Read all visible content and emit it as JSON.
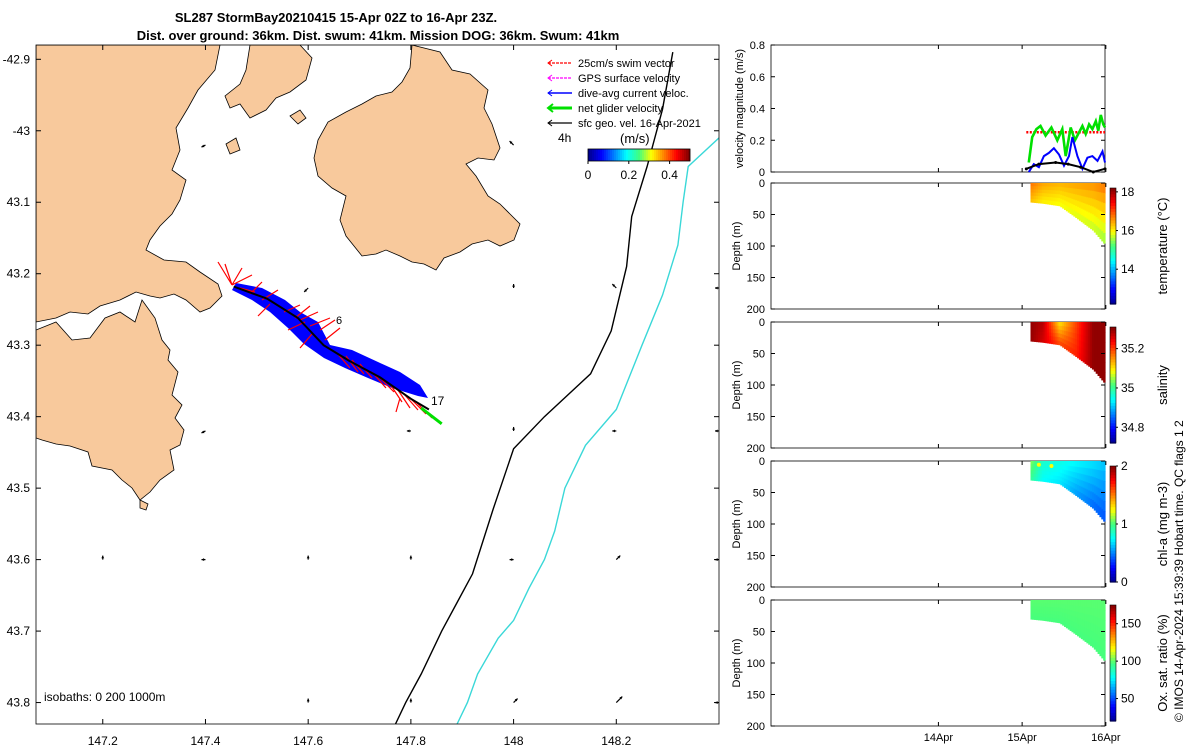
{
  "title_line1": "SL287 StormBay20210415 15-Apr 02Z to 16-Apr 23Z.",
  "title_line2": "Dist. over ground: 36km. Dist. swum: 41km. Mission DOG: 36km. Swum: 41km",
  "credit": "© IMOS 14-Apr-2024 15:39:39 Hobart time. QC flags 1  2",
  "colors": {
    "land": "#f8c99c",
    "glider_track": "#0000ff",
    "swim": "#ff0000",
    "net": "#00e000",
    "isobath_200": "#000000",
    "isobath_1000": "#3ad8d8"
  },
  "chart_data": [
    {
      "type": "map",
      "name": "track-map",
      "xlim": [
        147.07,
        148.4
      ],
      "ylim": [
        -43.83,
        -42.88
      ],
      "xticks": [
        147.2,
        147.4,
        147.6,
        147.8,
        148.0,
        148.2
      ],
      "xtick_labels": [
        "147.2",
        "147.4",
        "147.6",
        "147.8",
        "148",
        "148.2"
      ],
      "yticks": [
        -42.9,
        -43.0,
        -43.1,
        -43.2,
        -43.3,
        -43.4,
        -43.5,
        -43.6,
        -43.7,
        -43.8
      ],
      "ytick_labels": [
        "-42.9",
        "-43",
        "43.1",
        "43.2",
        "43.3",
        "43.4",
        "43.5",
        "43.6",
        "43.7",
        "43.8"
      ],
      "legend": [
        {
          "label": "25cm/s swim vector",
          "color": "#ff0000"
        },
        {
          "label": "GPS surface velocity",
          "color": "#ff00ff"
        },
        {
          "label": "dive-avg current veloc.",
          "color": "#0000ff"
        },
        {
          "label": "net glider velocity",
          "color": "#00e000"
        },
        {
          "label": "sfc geo. vel. 16-Apr-2021",
          "color": "#000000"
        }
      ],
      "colorbar": {
        "title": "(m/s)",
        "corner_label": "4h",
        "ticks": [
          "0",
          "0.2",
          "0.4"
        ],
        "range": [
          0,
          0.5
        ]
      },
      "isobaths_label": "isobaths: 0   200  1000m",
      "track_labels": [
        "6",
        "17"
      ],
      "glider_track": [
        [
          147.455,
          -43.218
        ],
        [
          147.52,
          -43.235
        ],
        [
          147.58,
          -43.262
        ],
        [
          147.63,
          -43.3
        ],
        [
          147.68,
          -43.322
        ],
        [
          147.74,
          -43.345
        ],
        [
          147.8,
          -43.375
        ],
        [
          147.835,
          -43.39
        ]
      ],
      "net_segment": [
        [
          147.82,
          -43.388
        ],
        [
          147.86,
          -43.41
        ]
      ],
      "isobath_200": [
        [
          148.31,
          -42.89
        ],
        [
          148.29,
          -42.97
        ],
        [
          148.26,
          -43.05
        ],
        [
          148.23,
          -43.12
        ],
        [
          148.22,
          -43.19
        ],
        [
          148.19,
          -43.28
        ],
        [
          148.15,
          -43.34
        ],
        [
          148.06,
          -43.4
        ],
        [
          148.0,
          -43.445
        ],
        [
          147.96,
          -43.53
        ],
        [
          147.92,
          -43.62
        ],
        [
          147.89,
          -43.66
        ],
        [
          147.86,
          -43.7
        ],
        [
          147.82,
          -43.76
        ],
        [
          147.79,
          -43.8
        ],
        [
          147.77,
          -43.83
        ]
      ],
      "isobath_1000": [
        [
          148.4,
          -43.01
        ],
        [
          148.34,
          -43.05
        ],
        [
          148.33,
          -43.1
        ],
        [
          148.32,
          -43.16
        ],
        [
          148.29,
          -43.23
        ],
        [
          148.25,
          -43.3
        ],
        [
          148.2,
          -43.39
        ],
        [
          148.14,
          -43.44
        ],
        [
          148.1,
          -43.5
        ],
        [
          148.08,
          -43.56
        ],
        [
          148.06,
          -43.6
        ],
        [
          148.03,
          -43.64
        ],
        [
          148.0,
          -43.685
        ],
        [
          147.97,
          -43.71
        ],
        [
          147.93,
          -43.76
        ],
        [
          147.91,
          -43.8
        ],
        [
          147.89,
          -43.83
        ]
      ],
      "sfc_vectors": [
        {
          "lon": 147.4,
          "lat": -43.02,
          "u": -0.1,
          "v": -0.05
        },
        {
          "lon": 148.0,
          "lat": -43.02,
          "u": -0.1,
          "v": 0.1
        },
        {
          "lon": 147.6,
          "lat": -43.22,
          "u": -0.1,
          "v": -0.1
        },
        {
          "lon": 148.0,
          "lat": -43.22,
          "u": 0.0,
          "v": 0.1
        },
        {
          "lon": 148.2,
          "lat": -43.22,
          "u": -0.1,
          "v": 0.1
        },
        {
          "lon": 148.4,
          "lat": -43.22,
          "u": -0.1,
          "v": 0.0
        },
        {
          "lon": 147.4,
          "lat": -43.42,
          "u": -0.1,
          "v": -0.05
        },
        {
          "lon": 147.8,
          "lat": -43.42,
          "u": -0.1,
          "v": 0.0
        },
        {
          "lon": 148.0,
          "lat": -43.42,
          "u": 0.0,
          "v": 0.1
        },
        {
          "lon": 148.2,
          "lat": -43.42,
          "u": -0.1,
          "v": 0.0
        },
        {
          "lon": 148.4,
          "lat": -43.42,
          "u": -0.1,
          "v": 0.0
        },
        {
          "lon": 147.2,
          "lat": -43.6,
          "u": 0.0,
          "v": 0.1
        },
        {
          "lon": 147.4,
          "lat": -43.6,
          "u": -0.1,
          "v": 0.0
        },
        {
          "lon": 147.6,
          "lat": -43.6,
          "u": 0.0,
          "v": 0.1
        },
        {
          "lon": 147.8,
          "lat": -43.6,
          "u": 0.0,
          "v": 0.1
        },
        {
          "lon": 148.0,
          "lat": -43.6,
          "u": -0.1,
          "v": 0.0
        },
        {
          "lon": 148.2,
          "lat": -43.6,
          "u": 0.1,
          "v": 0.1
        },
        {
          "lon": 148.4,
          "lat": -43.6,
          "u": -0.1,
          "v": 0.0
        },
        {
          "lon": 147.6,
          "lat": -43.8,
          "u": 0.0,
          "v": 0.1
        },
        {
          "lon": 147.8,
          "lat": -43.8,
          "u": 0.0,
          "v": 0.1
        },
        {
          "lon": 148.0,
          "lat": -43.8,
          "u": 0.1,
          "v": 0.1
        },
        {
          "lon": 148.2,
          "lat": -43.8,
          "u": 0.15,
          "v": 0.15
        },
        {
          "lon": 148.4,
          "lat": -43.8,
          "u": -0.1,
          "v": 0.0
        }
      ]
    },
    {
      "type": "line",
      "name": "velocity-magnitude",
      "ylabel": "velocity magnitude (m/s)",
      "ylim": [
        0,
        0.8
      ],
      "yticks": [
        0,
        0.2,
        0.4,
        0.6,
        0.8
      ],
      "ytick_labels": [
        "0",
        "0.2",
        "0.4",
        "0.6",
        "0.8"
      ],
      "xlim_days": [
        -2.0,
        1.99
      ],
      "x_day_origin": "14-Apr-2021",
      "series": [
        {
          "name": "swim (25cm/s)",
          "color": "#ff0000",
          "style": "dotted",
          "x": [
            1.05,
            1.99
          ],
          "values": [
            0.25,
            0.25
          ]
        },
        {
          "name": "net glider velocity",
          "color": "#00e000",
          "x": [
            1.08,
            1.12,
            1.17,
            1.22,
            1.28,
            1.35,
            1.42,
            1.48,
            1.52,
            1.58,
            1.63,
            1.68,
            1.72,
            1.76,
            1.8,
            1.84,
            1.88,
            1.91,
            1.94,
            1.97,
            1.99
          ],
          "values": [
            0.06,
            0.22,
            0.27,
            0.29,
            0.23,
            0.28,
            0.2,
            0.27,
            0.1,
            0.28,
            0.2,
            0.25,
            0.29,
            0.24,
            0.3,
            0.27,
            0.32,
            0.26,
            0.36,
            0.3,
            0.28
          ]
        },
        {
          "name": "dive-avg current",
          "color": "#0000ff",
          "x": [
            1.08,
            1.14,
            1.2,
            1.26,
            1.32,
            1.38,
            1.44,
            1.5,
            1.56,
            1.6,
            1.66,
            1.72,
            1.78,
            1.84,
            1.9,
            1.96,
            1.99
          ],
          "values": [
            0.0,
            0.05,
            0.03,
            0.1,
            0.12,
            0.15,
            0.11,
            0.04,
            0.1,
            0.22,
            0.1,
            0.02,
            0.09,
            0.1,
            0.07,
            0.13,
            0.06
          ]
        },
        {
          "name": "sfc geo. vel.",
          "color": "#000000",
          "x": [
            1.05,
            1.2,
            1.4,
            1.55,
            1.7,
            1.85,
            1.99
          ],
          "values": [
            0.02,
            0.05,
            0.06,
            0.05,
            0.03,
            0.0,
            0.02
          ]
        }
      ]
    },
    {
      "type": "heatmap",
      "name": "temperature-section",
      "ylabel": "Depth (m)",
      "ylim": [
        200,
        0
      ],
      "yticks": [
        0,
        50,
        100,
        150,
        200
      ],
      "ytick_labels": [
        "0",
        "50",
        "100",
        "150",
        "200"
      ],
      "colorbar": {
        "label": "temperature (°C)",
        "range": [
          12.2,
          18.2
        ],
        "ticks": [
          14,
          16,
          18
        ],
        "tick_labels": [
          "14",
          "16",
          "18"
        ]
      },
      "x_days": [
        1.1,
        1.25,
        1.45,
        1.65,
        1.85,
        1.99
      ],
      "bottom_depth": [
        30,
        32,
        36,
        55,
        75,
        97
      ],
      "surface_value": [
        16.8,
        16.5,
        16.4,
        16.5,
        16.6,
        16.8
      ],
      "deep_value": [
        16.3,
        16.0,
        15.9,
        15.8,
        15.7,
        15.5
      ]
    },
    {
      "type": "heatmap",
      "name": "salinity-section",
      "ylabel": "Depth (m)",
      "ylim": [
        200,
        0
      ],
      "yticks": [
        0,
        50,
        100,
        150,
        200
      ],
      "ytick_labels": [
        "0",
        "50",
        "100",
        "150",
        "200"
      ],
      "colorbar": {
        "label": "salinity",
        "range": [
          34.72,
          35.31
        ],
        "ticks": [
          34.8,
          35.0,
          35.2
        ],
        "tick_labels": [
          "34.8",
          "35",
          "35.2"
        ]
      },
      "x_days": [
        1.1,
        1.25,
        1.45,
        1.65,
        1.85,
        1.99
      ],
      "bottom_depth": [
        30,
        32,
        36,
        55,
        75,
        97
      ],
      "surface_value": [
        35.3,
        35.28,
        35.1,
        35.2,
        35.3,
        35.3
      ],
      "deep_value": [
        35.3,
        35.26,
        35.2,
        35.22,
        35.3,
        35.3
      ]
    },
    {
      "type": "heatmap",
      "name": "chla-section",
      "ylabel": "Depth (m)",
      "ylim": [
        200,
        0
      ],
      "yticks": [
        0,
        50,
        100,
        150,
        200
      ],
      "ytick_labels": [
        "0",
        "50",
        "100",
        "150",
        "200"
      ],
      "colorbar": {
        "label": "chl-a (mg m-3)",
        "range": [
          0,
          2
        ],
        "ticks": [
          0,
          1,
          2
        ],
        "tick_labels": [
          "0",
          "1",
          "2"
        ]
      },
      "x_days": [
        1.1,
        1.25,
        1.45,
        1.65,
        1.85,
        1.99
      ],
      "bottom_depth": [
        30,
        32,
        36,
        55,
        75,
        97
      ],
      "surface_value": [
        1.1,
        0.85,
        0.8,
        0.75,
        0.7,
        0.65
      ],
      "deep_value": [
        0.95,
        0.75,
        0.7,
        0.55,
        0.45,
        0.4
      ]
    },
    {
      "type": "heatmap",
      "name": "oxygen-section",
      "ylabel": "Depth (m)",
      "ylim": [
        200,
        0
      ],
      "yticks": [
        0,
        50,
        100,
        150,
        200
      ],
      "ytick_labels": [
        "0",
        "50",
        "100",
        "150",
        "200"
      ],
      "colorbar": {
        "label": "Ox. sat. ratio (%)",
        "range": [
          20,
          175
        ],
        "ticks": [
          50,
          100,
          150
        ],
        "tick_labels": [
          "50",
          "100",
          "150"
        ]
      },
      "x_days": [
        1.1,
        1.25,
        1.45,
        1.65,
        1.85,
        1.99
      ],
      "bottom_depth": [
        30,
        32,
        36,
        55,
        75,
        97
      ],
      "surface_value": [
        100,
        100,
        100,
        100,
        100,
        100
      ],
      "deep_value": [
        98,
        98,
        98,
        98,
        98,
        98
      ]
    }
  ],
  "time_axis": {
    "ticks": [
      0,
      1,
      2
    ],
    "tick_labels": [
      "14Apr",
      "15Apr",
      "16Apr"
    ]
  }
}
